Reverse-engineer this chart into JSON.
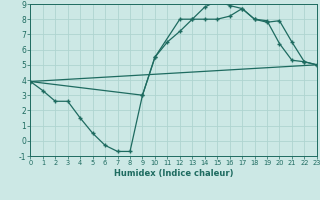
{
  "xlabel": "Humidex (Indice chaleur)",
  "background_color": "#cce8e5",
  "grid_color": "#afd4d0",
  "line_color": "#1e6b60",
  "xlim": [
    0,
    23
  ],
  "ylim": [
    -1,
    9
  ],
  "xticks": [
    0,
    1,
    2,
    3,
    4,
    5,
    6,
    7,
    8,
    9,
    10,
    11,
    12,
    13,
    14,
    15,
    16,
    17,
    18,
    19,
    20,
    21,
    22,
    23
  ],
  "yticks": [
    -1,
    0,
    1,
    2,
    3,
    4,
    5,
    6,
    7,
    8,
    9
  ],
  "line1_x": [
    0,
    1,
    2,
    3,
    4,
    5,
    6,
    7,
    8,
    9,
    10,
    11,
    12,
    13,
    14,
    15,
    16,
    17,
    18,
    19,
    20,
    21,
    22,
    23
  ],
  "line1_y": [
    3.9,
    3.3,
    2.6,
    2.6,
    1.5,
    0.5,
    -0.3,
    -0.7,
    -0.7,
    3.0,
    5.5,
    6.5,
    7.2,
    8.0,
    8.0,
    8.0,
    8.2,
    8.7,
    8.0,
    7.9,
    6.4,
    5.3,
    5.2,
    5.0
  ],
  "line2_x": [
    0,
    23
  ],
  "line2_y": [
    3.9,
    5.0
  ],
  "line3_x": [
    0,
    9,
    10,
    12,
    13,
    14,
    15,
    16,
    17,
    18,
    19,
    20,
    21,
    22,
    23
  ],
  "line3_y": [
    3.9,
    3.0,
    5.5,
    8.0,
    8.0,
    8.8,
    9.2,
    8.9,
    8.7,
    8.0,
    7.8,
    7.9,
    6.5,
    5.2,
    5.0
  ]
}
